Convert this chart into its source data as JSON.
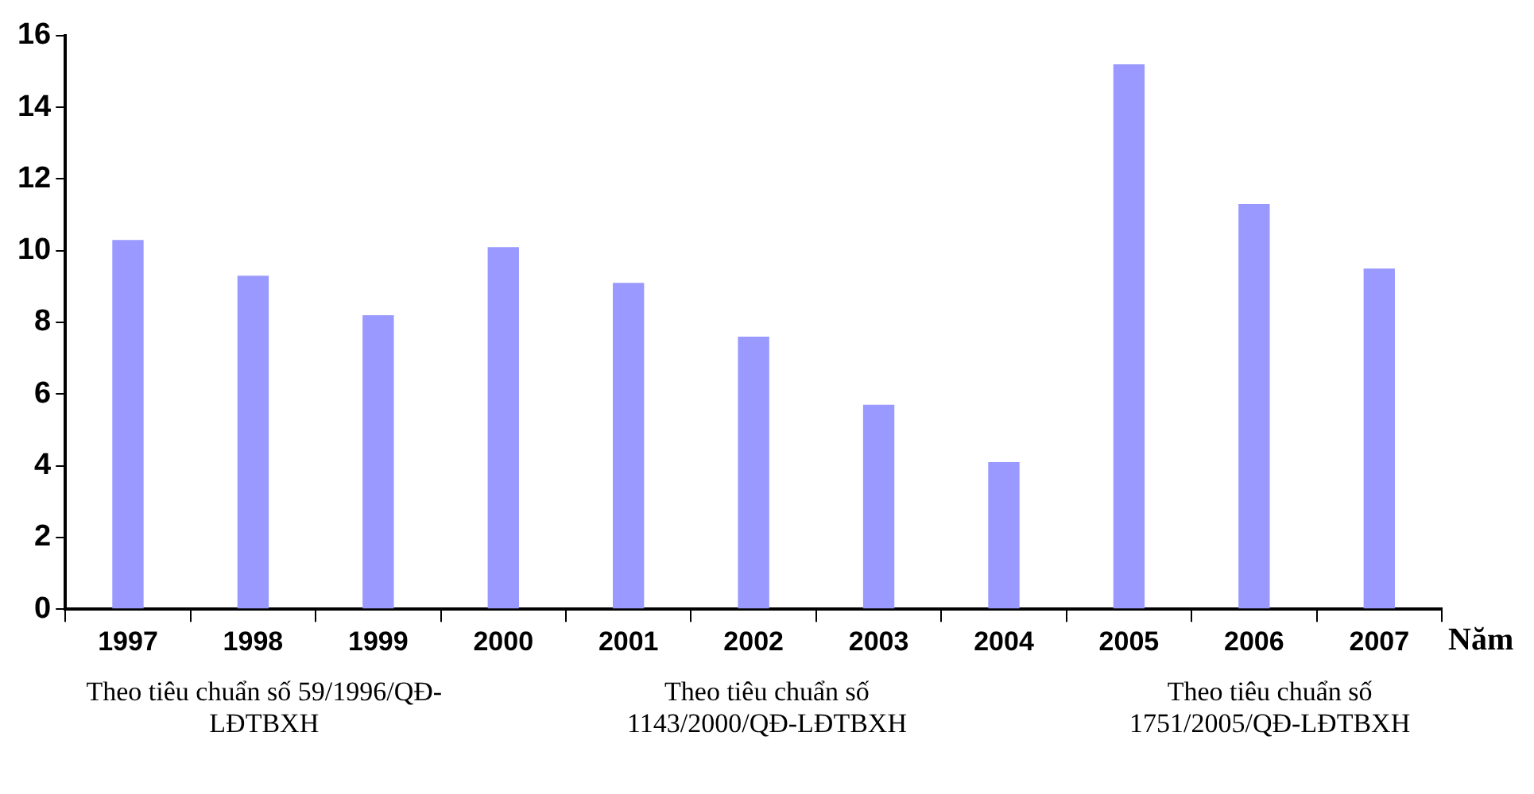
{
  "chart_data": {
    "type": "bar",
    "xlabel": "Năm",
    "categories": [
      "1997",
      "1998",
      "1999",
      "2000",
      "2001",
      "2002",
      "2003",
      "2004",
      "2005",
      "2006",
      "2007"
    ],
    "values": [
      10.3,
      9.3,
      8.2,
      10.1,
      9.1,
      7.6,
      5.7,
      4.1,
      15.2,
      11.3,
      9.5
    ],
    "color": "#9999ff",
    "ylim": [
      0,
      16
    ],
    "yticks": [
      0,
      2,
      4,
      6,
      8,
      10,
      12,
      14,
      16
    ],
    "grid": false,
    "legend": false,
    "annotations": [
      "Theo tiêu chuẩn số 59/1996/QĐ-LĐTBXH",
      "Theo tiêu chuẩn số 1143/2000/QĐ-LĐTBXH",
      "Theo tiêu chuẩn số 1751/2005/QĐ-LĐTBXH"
    ]
  }
}
